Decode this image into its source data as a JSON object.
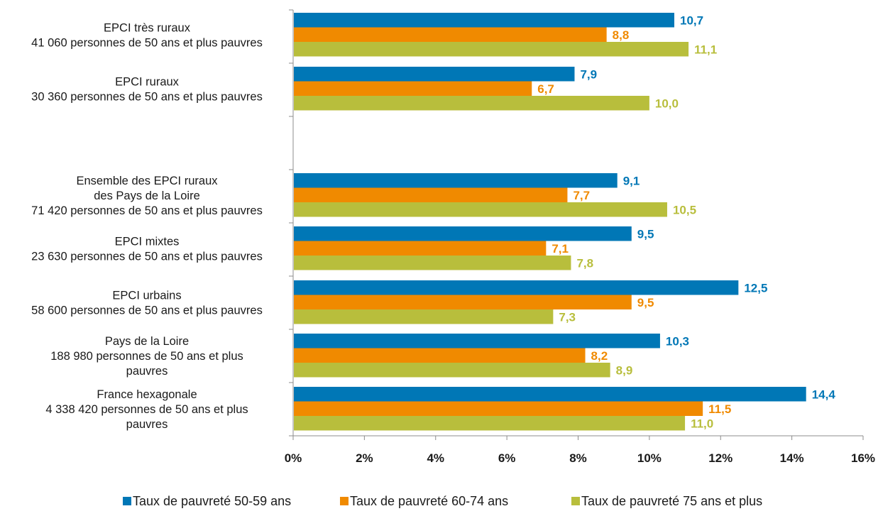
{
  "chart_data": {
    "type": "bar",
    "orientation": "horizontal",
    "groups": [
      {
        "label_lines": [
          "EPCI très ruraux",
          "41 060 personnes de 50 ans et plus pauvres"
        ],
        "values": [
          10.7,
          8.8,
          11.1
        ],
        "value_labels": [
          "10,7",
          "8,8",
          "11,1"
        ]
      },
      {
        "label_lines": [
          "EPCI ruraux",
          "30 360 personnes de 50 ans et plus pauvres"
        ],
        "values": [
          7.9,
          6.7,
          10.0
        ],
        "value_labels": [
          "7,9",
          "6,7",
          "10,0"
        ]
      },
      {
        "label_lines": [
          "Ensemble des EPCI ruraux",
          "des Pays de la Loire",
          "71 420  personnes de 50 ans et plus pauvres"
        ],
        "values": [
          9.1,
          7.7,
          10.5
        ],
        "value_labels": [
          "9,1",
          "7,7",
          "10,5"
        ]
      },
      {
        "label_lines": [
          "EPCI mixtes",
          "23 630 personnes de 50 ans et plus pauvres"
        ],
        "values": [
          9.5,
          7.1,
          7.8
        ],
        "value_labels": [
          "9,5",
          "7,1",
          "7,8"
        ]
      },
      {
        "label_lines": [
          "EPCI urbains",
          "58 600 personnes de 50 ans et plus pauvres"
        ],
        "values": [
          12.5,
          9.5,
          7.3
        ],
        "value_labels": [
          "12,5",
          "9,5",
          "7,3"
        ]
      },
      {
        "label_lines": [
          "Pays de la Loire",
          "188 980 personnes de 50 ans et plus",
          "pauvres"
        ],
        "values": [
          10.3,
          8.2,
          8.9
        ],
        "value_labels": [
          "10,3",
          "8,2",
          "8,9"
        ]
      },
      {
        "label_lines": [
          "France hexagonale",
          "4 338 420 personnes de 50 ans et plus",
          "pauvres"
        ],
        "values": [
          14.4,
          11.5,
          11.0
        ],
        "value_labels": [
          "14,4",
          "11,5",
          "11,0"
        ]
      }
    ],
    "series": [
      {
        "name": "Taux de pauvreté 50-59 ans",
        "color": "#0077b6"
      },
      {
        "name": "Taux de pauvreté 60-74 ans",
        "color": "#f08a00"
      },
      {
        "name": "Taux de pauvreté 75 ans et plus",
        "color": "#b8be3c"
      }
    ],
    "xlim": [
      0,
      16
    ],
    "x_ticks": [
      0,
      2,
      4,
      6,
      8,
      10,
      12,
      14,
      16
    ],
    "x_tick_labels": [
      "0%",
      "2%",
      "4%",
      "6%",
      "8%",
      "10%",
      "12%",
      "14%",
      "16%"
    ],
    "grid": false,
    "legend_position": "bottom",
    "title": "",
    "xlabel": "",
    "ylabel": ""
  }
}
